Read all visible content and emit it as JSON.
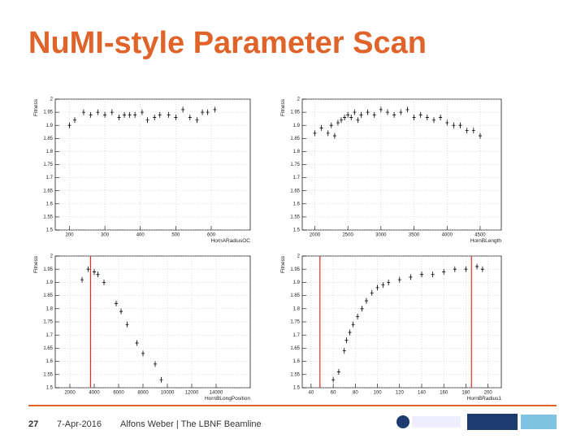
{
  "title": "NuMI-style Parameter Scan",
  "chart_data": [
    {
      "type": "scatter",
      "x_label": "HornARadiusOC",
      "y_label": "Fitness",
      "color": "#000000",
      "grid": true,
      "xlim": [
        160,
        710
      ],
      "ylim": [
        1.5,
        2
      ],
      "xticks": [
        200,
        300,
        400,
        500,
        600
      ],
      "yticks": [
        1.5,
        1.55,
        1.6,
        1.65,
        1.7,
        1.75,
        1.8,
        1.85,
        1.9,
        1.95,
        2
      ],
      "x": [
        200,
        215,
        240,
        260,
        280,
        300,
        320,
        340,
        355,
        370,
        385,
        405,
        420,
        440,
        455,
        480,
        500,
        520,
        540,
        560,
        575,
        590,
        610
      ],
      "values": [
        1.9,
        1.92,
        1.95,
        1.94,
        1.95,
        1.94,
        1.95,
        1.93,
        1.94,
        1.94,
        1.94,
        1.95,
        1.92,
        1.93,
        1.94,
        1.94,
        1.93,
        1.96,
        1.93,
        1.92,
        1.95,
        1.95,
        1.96
      ],
      "vlines": [],
      "vline_color": "#e0301e"
    },
    {
      "type": "scatter",
      "x_label": "HornBLength",
      "y_label": "Fitness",
      "color": "#000000",
      "grid": true,
      "xlim": [
        1810,
        4820
      ],
      "ylim": [
        1.5,
        2
      ],
      "xticks": [
        2000,
        2500,
        3000,
        3500,
        4000,
        4500
      ],
      "yticks": [
        1.5,
        1.55,
        1.6,
        1.65,
        1.7,
        1.75,
        1.8,
        1.85,
        1.9,
        1.95,
        2
      ],
      "x": [
        2000,
        2100,
        2200,
        2250,
        2300,
        2350,
        2400,
        2450,
        2500,
        2550,
        2600,
        2650,
        2700,
        2800,
        2900,
        3000,
        3100,
        3200,
        3300,
        3400,
        3500,
        3600,
        3700,
        3800,
        3900,
        4000,
        4100,
        4200,
        4300,
        4400,
        4500
      ],
      "values": [
        1.87,
        1.89,
        1.87,
        1.9,
        1.86,
        1.91,
        1.92,
        1.93,
        1.94,
        1.93,
        1.95,
        1.92,
        1.94,
        1.95,
        1.94,
        1.96,
        1.95,
        1.94,
        1.95,
        1.96,
        1.93,
        1.94,
        1.93,
        1.92,
        1.93,
        1.91,
        1.9,
        1.9,
        1.88,
        1.88,
        1.86
      ],
      "vlines": [],
      "vline_color": "#e0301e"
    },
    {
      "type": "scatter",
      "x_label": "HornBLongPosition",
      "y_label": "Fitness",
      "color": "#000000",
      "grid": true,
      "xlim": [
        800,
        16800
      ],
      "ylim": [
        1.5,
        2
      ],
      "xticks": [
        2000,
        4000,
        6000,
        8000,
        10000,
        12000,
        14000
      ],
      "yticks": [
        1.5,
        1.55,
        1.6,
        1.65,
        1.7,
        1.75,
        1.8,
        1.85,
        1.9,
        1.95,
        2
      ],
      "x": [
        3000,
        3500,
        4000,
        4300,
        4800,
        5800,
        6200,
        6700,
        7500,
        8000,
        9000,
        9500
      ],
      "values": [
        1.91,
        1.95,
        1.94,
        1.93,
        1.9,
        1.82,
        1.79,
        1.74,
        1.67,
        1.63,
        1.59,
        1.53
      ],
      "vlines": [
        3700
      ],
      "vline_color": "#e0301e"
    },
    {
      "type": "scatter",
      "x_label": "HornBRadius1",
      "y_label": "Fitness",
      "color": "#000000",
      "grid": true,
      "xlim": [
        32,
        212
      ],
      "ylim": [
        1.5,
        2
      ],
      "xticks": [
        40,
        60,
        80,
        100,
        120,
        140,
        160,
        180,
        200
      ],
      "yticks": [
        1.5,
        1.55,
        1.6,
        1.65,
        1.7,
        1.75,
        1.8,
        1.85,
        1.9,
        1.95,
        2
      ],
      "x": [
        60,
        65,
        70,
        72,
        75,
        78,
        82,
        86,
        90,
        95,
        100,
        105,
        110,
        120,
        130,
        140,
        150,
        160,
        170,
        180,
        190,
        195
      ],
      "values": [
        1.53,
        1.56,
        1.64,
        1.68,
        1.71,
        1.74,
        1.77,
        1.8,
        1.83,
        1.86,
        1.88,
        1.89,
        1.9,
        1.91,
        1.92,
        1.93,
        1.93,
        1.94,
        1.95,
        1.95,
        1.96,
        1.95
      ],
      "vlines": [
        48,
        185
      ],
      "vline_color": "#e0301e"
    }
  ],
  "footer": {
    "page": "27",
    "date": "7-Apr-2016",
    "text": "Alfons Weber | The LBNF Beamline"
  }
}
